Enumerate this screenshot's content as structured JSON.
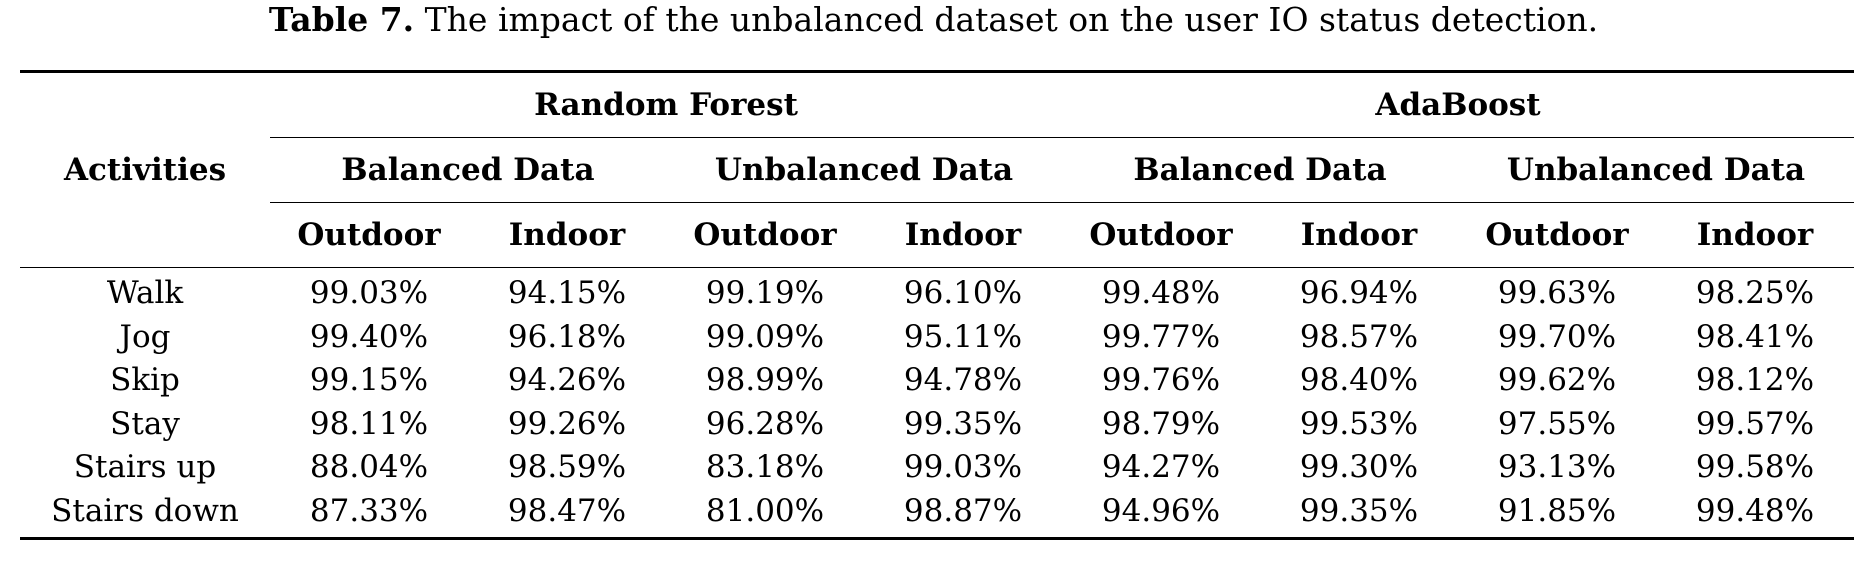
{
  "caption": {
    "label": "Table 7.",
    "text": "The impact of the unbalanced dataset on the user IO status detection."
  },
  "table": {
    "row_header": "Activities",
    "models": [
      "Random Forest",
      "AdaBoost"
    ],
    "data_types": [
      "Balanced Data",
      "Unbalanced Data"
    ],
    "environments": [
      "Outdoor",
      "Indoor"
    ],
    "rows": [
      {
        "activity": "Walk",
        "values": [
          "99.03%",
          "94.15%",
          "99.19%",
          "96.10%",
          "99.48%",
          "96.94%",
          "99.63%",
          "98.25%"
        ]
      },
      {
        "activity": "Jog",
        "values": [
          "99.40%",
          "96.18%",
          "99.09%",
          "95.11%",
          "99.77%",
          "98.57%",
          "99.70%",
          "98.41%"
        ]
      },
      {
        "activity": "Skip",
        "values": [
          "99.15%",
          "94.26%",
          "98.99%",
          "94.78%",
          "99.76%",
          "98.40%",
          "99.62%",
          "98.12%"
        ]
      },
      {
        "activity": "Stay",
        "values": [
          "98.11%",
          "99.26%",
          "96.28%",
          "99.35%",
          "98.79%",
          "99.53%",
          "97.55%",
          "99.57%"
        ]
      },
      {
        "activity": "Stairs up",
        "values": [
          "88.04%",
          "98.59%",
          "83.18%",
          "99.03%",
          "94.27%",
          "99.30%",
          "93.13%",
          "99.58%"
        ]
      },
      {
        "activity": "Stairs down",
        "values": [
          "87.33%",
          "98.47%",
          "81.00%",
          "98.87%",
          "94.96%",
          "99.35%",
          "91.85%",
          "99.48%"
        ]
      }
    ]
  }
}
